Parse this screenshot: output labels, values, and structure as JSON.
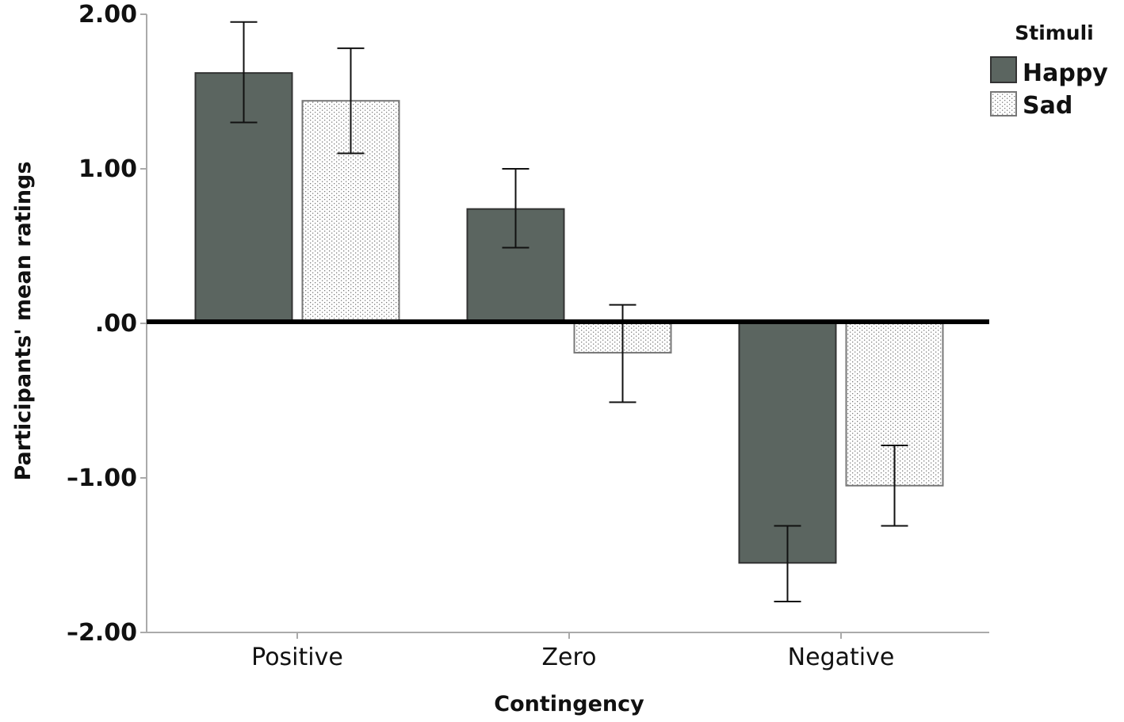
{
  "chart_data": {
    "type": "bar",
    "title": "",
    "xlabel": "Contingency",
    "ylabel": "Participants' mean ratings",
    "ylim": [
      -2,
      2
    ],
    "yticks": [
      2,
      1,
      0,
      -1,
      -2
    ],
    "ytick_labels": [
      "2.00",
      "1.00",
      ".00",
      "–1.00",
      "–2.00"
    ],
    "categories": [
      "Positive",
      "Zero",
      "Negative"
    ],
    "legend": {
      "title": "Stimuli",
      "position": "top-right"
    },
    "series": [
      {
        "name": "Happy",
        "color": "#5b6560",
        "pattern": "solid",
        "values": [
          1.62,
          0.74,
          -1.55
        ],
        "error_low": [
          1.3,
          0.49,
          -1.8
        ],
        "error_high": [
          1.95,
          1.0,
          -1.31
        ]
      },
      {
        "name": "Sad",
        "color": "#ffffff",
        "pattern": "dotted",
        "values": [
          1.44,
          -0.19,
          -1.05
        ],
        "error_low": [
          1.1,
          -0.51,
          -1.31
        ],
        "error_high": [
          1.78,
          0.12,
          -0.79
        ]
      }
    ],
    "grid": false,
    "zero_line": true
  }
}
